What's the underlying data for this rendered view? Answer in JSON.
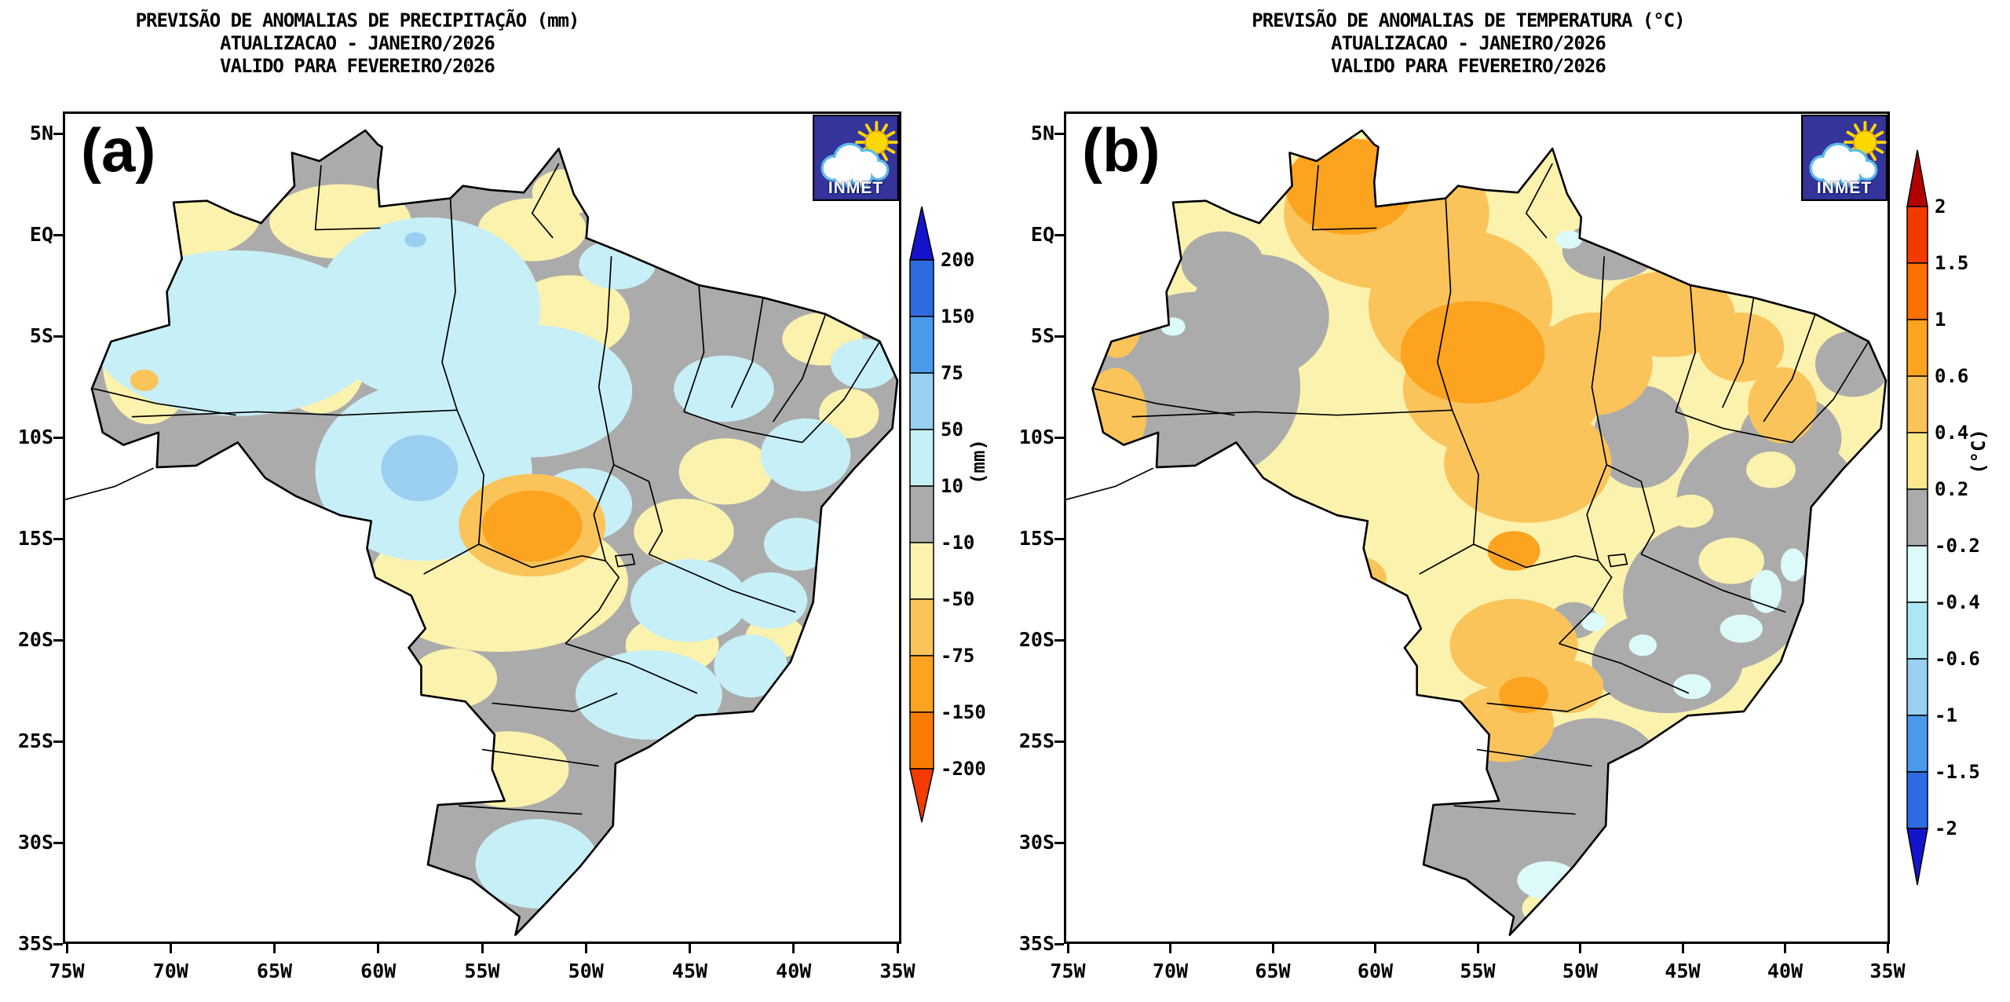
{
  "palette": {
    "dark_blue": "#1414CC",
    "royal_blue": "#2F6BE0",
    "medium_blue": "#4A9AEC",
    "sky_blue": "#9ACFF2",
    "pale_cyan": "#C7EFF7",
    "very_pale_cyan": "#DCFAFA",
    "light_cyan": "#ACE8F4",
    "gray": "#ABABAB",
    "pale_yellow": "#FBF2AD",
    "yellow": "#FDE88C",
    "amber": "#FBC45A",
    "orange": "#FCA31F",
    "deep_orange": "#F97C02",
    "orange_red": "#FB7100",
    "red": "#F23B00",
    "dark_red": "#B30000",
    "logo_bg": "#34349B",
    "logo_sun": "#FFD700",
    "logo_cloud_outline": "#5ABCEB",
    "frame_border": "#000000"
  },
  "panels": [
    {
      "tag": "(a)",
      "variable": "precipitation-anomaly",
      "title_lines": [
        "PREVISÃO DE ANOMALIAS DE PRECIPITAÇÃO (mm)",
        "ATUALIZACAO - JANEIRO/2026",
        "VALIDO PARA FEVEREIRO/2026"
      ],
      "y_ticks": [
        "5N",
        "EQ",
        "5S",
        "10S",
        "15S",
        "20S",
        "25S",
        "30S",
        "35S"
      ],
      "x_ticks": [
        "75W",
        "70W",
        "65W",
        "60W",
        "55W",
        "50W",
        "45W",
        "40W",
        "35W"
      ],
      "logo_text": "INMET",
      "colorbar": {
        "unit": "(mm)",
        "ticks": [
          "200",
          "150",
          "75",
          "50",
          "10",
          "-10",
          "-50",
          "-75",
          "-150",
          "-200"
        ],
        "colors_top_to_bottom": [
          "dark_blue",
          "royal_blue",
          "medium_blue",
          "sky_blue",
          "pale_cyan",
          "gray",
          "pale_yellow",
          "amber",
          "orange",
          "deep_orange",
          "red"
        ]
      }
    },
    {
      "tag": "(b)",
      "variable": "temperature-anomaly",
      "title_lines": [
        "PREVISÃO DE ANOMALIAS DE TEMPERATURA (°C)",
        "ATUALIZACAO - JANEIRO/2026",
        "VALIDO PARA FEVEREIRO/2026"
      ],
      "y_ticks": [
        "5N",
        "EQ",
        "5S",
        "10S",
        "15S",
        "20S",
        "25S",
        "30S",
        "35S"
      ],
      "x_ticks": [
        "75W",
        "70W",
        "65W",
        "60W",
        "55W",
        "50W",
        "45W",
        "40W",
        "35W"
      ],
      "logo_text": "INMET",
      "colorbar": {
        "unit": "(°C)",
        "ticks": [
          "2",
          "1.5",
          "1",
          "0.6",
          "0.4",
          "0.2",
          "-0.2",
          "-0.4",
          "-0.6",
          "-1",
          "-1.5",
          "-2"
        ],
        "colors_top_to_bottom": [
          "dark_red",
          "red",
          "orange_red",
          "orange",
          "amber",
          "yellow",
          "gray",
          "very_pale_cyan",
          "light_cyan",
          "sky_blue",
          "medium_blue",
          "royal_blue",
          "dark_blue"
        ]
      }
    }
  ],
  "chart_data": [
    {
      "type": "heatmap",
      "title": "PREVISÃO DE ANOMALIAS DE PRECIPITAÇÃO (mm) — FEVEREIRO/2026",
      "region": "Brazil",
      "lon_range": [
        "75W",
        "35W"
      ],
      "lat_range": [
        "5N",
        "35S"
      ],
      "unit": "mm",
      "levels": [
        -200,
        -150,
        -75,
        -50,
        -10,
        10,
        50,
        75,
        150,
        200
      ],
      "palette_keys_low_to_high": [
        "red",
        "deep_orange",
        "orange",
        "amber",
        "pale_yellow",
        "gray",
        "pale_cyan",
        "sky_blue",
        "medium_blue",
        "royal_blue",
        "dark_blue"
      ],
      "notable_features": [
        "large neutral areas (-10 to 10 mm, gray) across the north edge, northeast interior and south",
        "positive anomalies 10-50 mm (pale cyan) over western/central Amazonia, east-central coast and parts of the south",
        "negative anomalies -10 to -50 mm (pale yellow) in scattered west, central-south and northeast patches",
        "dry core of -75 to -150 mm (orange, with -50 to -75 amber ring) near 53W 12S",
        "wet spot of 50-75 mm (light blue) near 58W 11S in Rondônia"
      ]
    },
    {
      "type": "heatmap",
      "title": "PREVISÃO DE ANOMALIAS DE TEMPERATURA (°C) — FEVEREIRO/2026",
      "region": "Brazil",
      "lon_range": [
        "75W",
        "35W"
      ],
      "lat_range": [
        "5N",
        "35S"
      ],
      "unit": "°C",
      "levels": [
        -2,
        -1.5,
        -1,
        -0.6,
        -0.4,
        -0.2,
        0.2,
        0.4,
        0.6,
        1,
        1.5,
        2
      ],
      "palette_keys_low_to_high": [
        "dark_blue",
        "royal_blue",
        "medium_blue",
        "sky_blue",
        "light_cyan",
        "very_pale_cyan",
        "gray",
        "yellow",
        "amber",
        "orange",
        "orange_red",
        "red",
        "dark_red"
      ],
      "notable_features": [
        "warm anomalies dominate: 0.2-0.4 °C (pale yellow) base over most of Brazil",
        "0.4-0.6 °C (amber) band across the north, center and northeast coast",
        "0.6-1 °C (orange) cores over Roraima, central Pará/Amazonas and spots near 53W 15S and 52W 22S",
        "neutral -0.2 to 0.2 °C (gray) over Acre/western Amazonia, the east/southeast and the far south",
        "isolated -0.2 to -0.4 °C (pale cyan) spots along the southeast coast and south"
      ]
    }
  ]
}
